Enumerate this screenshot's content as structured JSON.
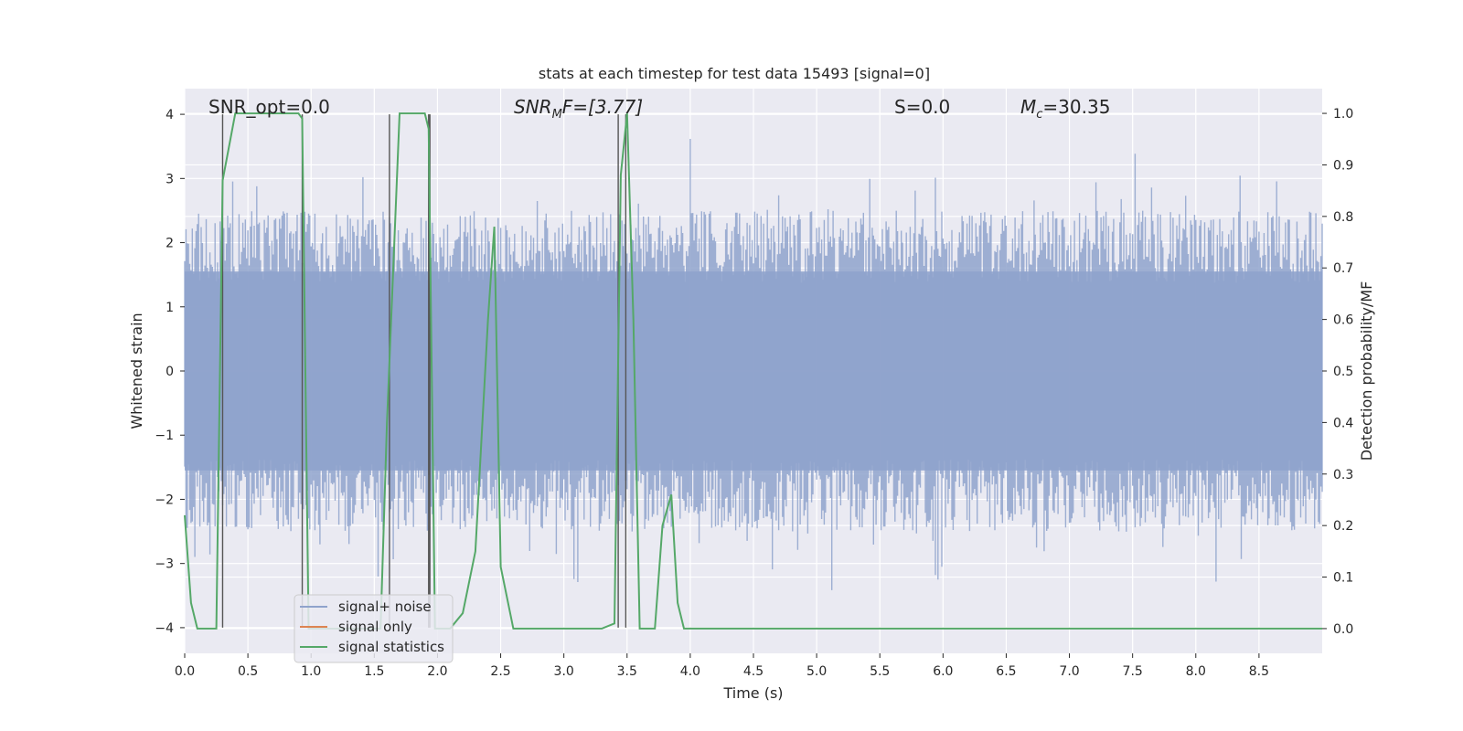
{
  "chart_data": {
    "type": "line",
    "title": "stats at each timestep for test data 15493 [signal=0]",
    "xlabel": "Time (s)",
    "ylabel": "Whitened strain",
    "y2label": "Detection probability/MF",
    "xlim": [
      0.0,
      9.0
    ],
    "ylim": [
      -4.4,
      4.4
    ],
    "y2lim": [
      -0.048,
      1.048
    ],
    "xticks": [
      "0.0",
      "0.5",
      "1.0",
      "1.5",
      "2.0",
      "2.5",
      "3.0",
      "3.5",
      "4.0",
      "4.5",
      "5.0",
      "5.5",
      "6.0",
      "6.5",
      "7.0",
      "7.5",
      "8.0",
      "8.5"
    ],
    "yticks": [
      "4",
      "3",
      "2",
      "1",
      "0",
      "−1",
      "−2",
      "−3",
      "−4"
    ],
    "y2ticks": [
      "1.0",
      "0.9",
      "0.8",
      "0.7",
      "0.6",
      "0.5",
      "0.4",
      "0.3",
      "0.2",
      "0.1",
      "0.0"
    ],
    "grid": true,
    "legend_position": "lower-left",
    "annotations": {
      "snr_opt": "SNR_opt=0.0",
      "snr_mf": "SNR",
      "snr_mf_sub": "M",
      "snr_mf_suffix": "F=[3.77]",
      "s": "S=0.0",
      "mc": "M",
      "mc_sub": "c",
      "mc_suffix": "=30.35"
    },
    "series": [
      {
        "name": "signal+ noise",
        "color": "#8fa3cc",
        "description": "dense noise, envelope approx ±2.5",
        "envelope_upper": 2.5,
        "envelope_lower": -2.5
      },
      {
        "name": "signal only",
        "color": "#dd8452",
        "values": []
      },
      {
        "name": "signal statistics",
        "color": "#55a868",
        "axis": "right",
        "x": [
          0.0,
          0.05,
          0.1,
          0.25,
          0.3,
          0.4,
          0.5,
          0.9,
          0.93,
          0.98,
          1.1,
          1.55,
          1.6,
          1.7,
          1.9,
          1.93,
          1.98,
          2.05,
          2.1,
          2.2,
          2.3,
          2.4,
          2.45,
          2.5,
          2.6,
          3.3,
          3.4,
          3.45,
          3.5,
          3.55,
          3.6,
          3.72,
          3.78,
          3.85,
          3.9,
          3.95,
          5.2,
          6.5,
          7.8,
          9.0
        ],
        "y": [
          0.22,
          0.05,
          0.0,
          0.0,
          0.87,
          1.0,
          1.0,
          1.0,
          0.99,
          0.0,
          0.0,
          0.0,
          0.4,
          1.0,
          1.0,
          0.97,
          0.0,
          0.0,
          0.0,
          0.03,
          0.15,
          0.6,
          0.78,
          0.12,
          0.0,
          0.0,
          0.01,
          0.88,
          1.0,
          0.6,
          0.0,
          0.0,
          0.2,
          0.26,
          0.05,
          0.0,
          0.0,
          0.0,
          0.0,
          0.0
        ]
      }
    ],
    "trigger_lines_x": [
      0.3,
      0.93,
      1.62,
      1.93,
      1.94,
      3.43,
      3.49
    ]
  },
  "legend": {
    "items": [
      {
        "label": "signal+ noise",
        "color": "#8fa3cc"
      },
      {
        "label": "signal only",
        "color": "#dd8452"
      },
      {
        "label": "signal statistics",
        "color": "#55a868"
      }
    ]
  },
  "colors": {
    "axes_bg": "#eaeaf2",
    "grid": "#ffffff",
    "noise": "#8fa3cc",
    "stat": "#55a868",
    "trigger": "#555555"
  }
}
